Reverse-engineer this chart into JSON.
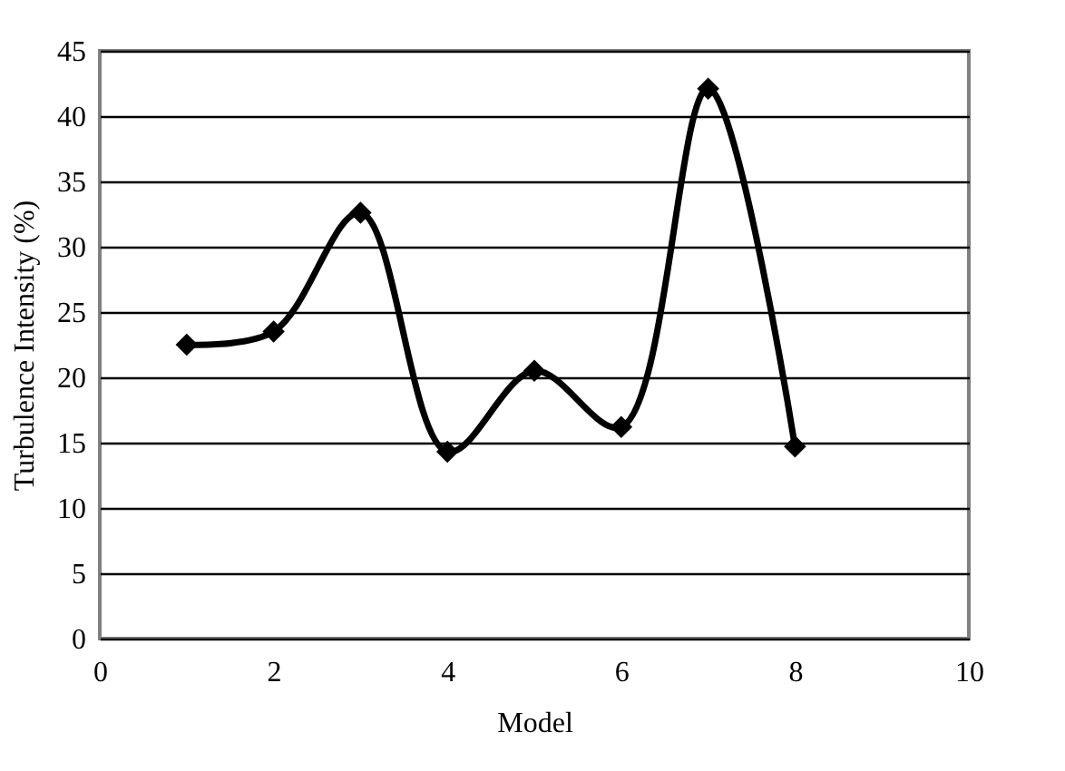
{
  "chart_data": {
    "type": "line",
    "xlabel": "Model",
    "ylabel": "Turbulence Intensity (%)",
    "x": [
      1,
      2,
      3,
      4,
      5,
      6,
      7,
      8
    ],
    "series": [
      {
        "color": "#000000",
        "values": [
          22.5,
          23.5,
          32.6,
          14.3,
          20.5,
          16.2,
          42.1,
          14.7
        ]
      }
    ],
    "xlim": [
      0,
      10
    ],
    "xticks": [
      0,
      2,
      4,
      6,
      8,
      10
    ],
    "ylim": [
      0,
      45
    ],
    "yticks": [
      0,
      5,
      10,
      15,
      20,
      25,
      30,
      35,
      40,
      45
    ],
    "grid": "y",
    "legend": false,
    "marker": "diamond",
    "line_style": "solid"
  }
}
